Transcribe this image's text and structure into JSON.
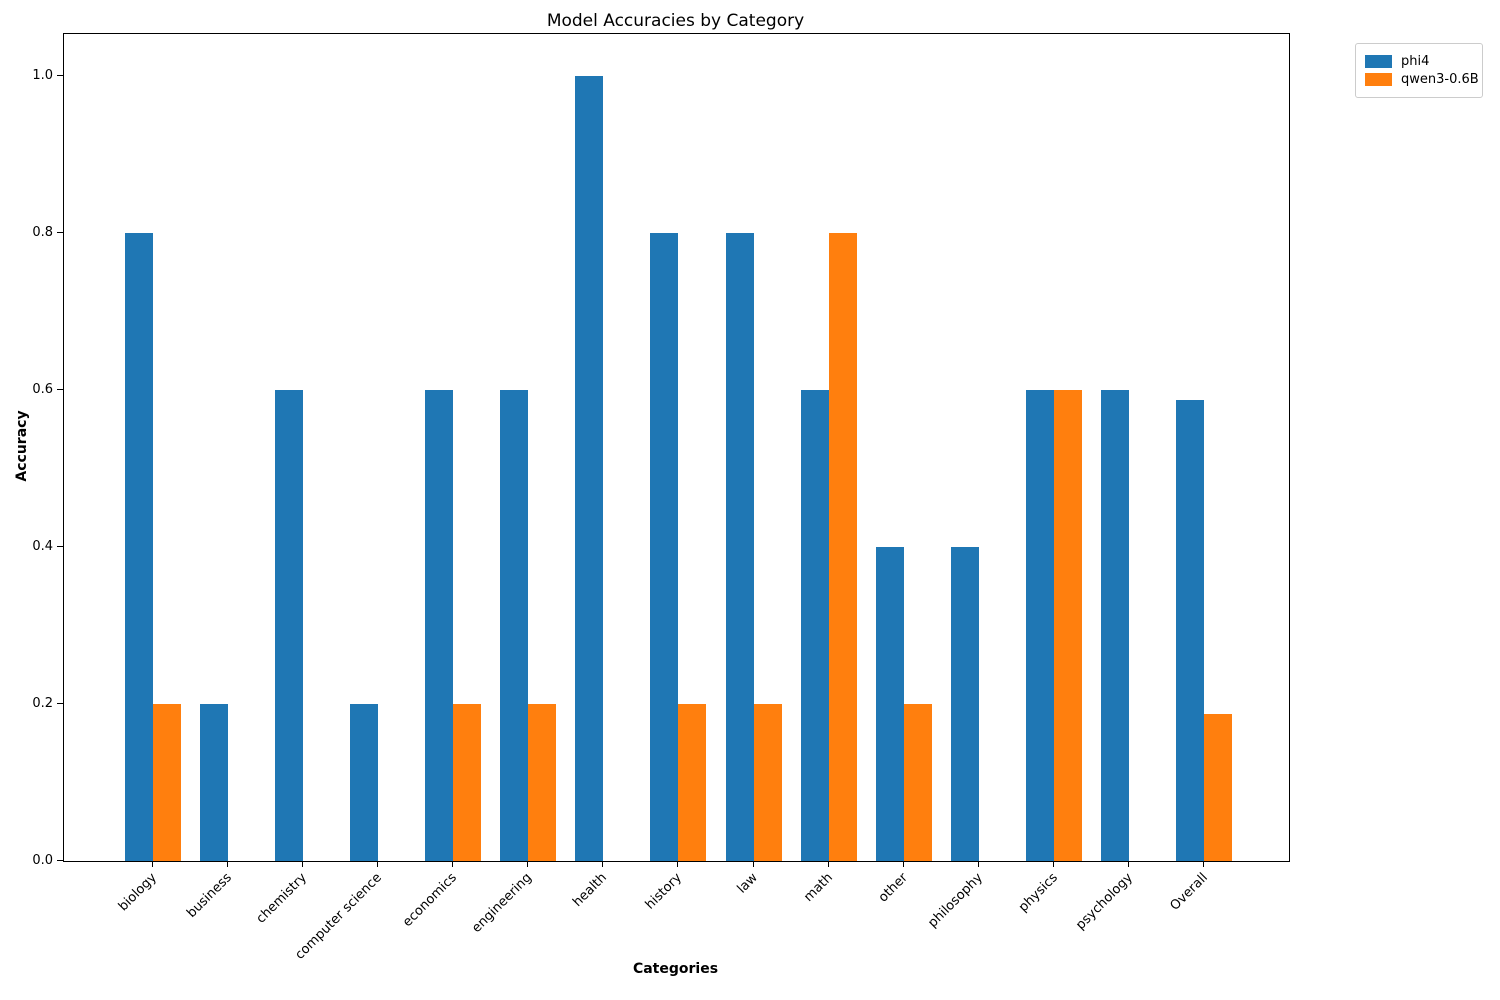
{
  "chart_data": {
    "type": "bar",
    "title": "Model Accuracies by Category",
    "xlabel": "Categories",
    "ylabel": "Accuracy",
    "categories": [
      "biology",
      "business",
      "chemistry",
      "computer science",
      "economics",
      "engineering",
      "health",
      "history",
      "law",
      "math",
      "other",
      "philosophy",
      "physics",
      "psychology",
      "Overall"
    ],
    "series": [
      {
        "name": "phi4",
        "color": "#1f77b4",
        "values": [
          0.8,
          0.2,
          0.6,
          0.2,
          0.6,
          0.6,
          1.0,
          0.8,
          0.8,
          0.6,
          0.4,
          0.4,
          0.6,
          0.6,
          0.587
        ]
      },
      {
        "name": "qwen3-0.6B",
        "color": "#ff7f0e",
        "values": [
          0.2,
          0.0,
          0.0,
          0.0,
          0.2,
          0.2,
          0.0,
          0.2,
          0.2,
          0.8,
          0.2,
          0.0,
          0.6,
          0.0,
          0.187
        ]
      }
    ],
    "yticks": [
      "0.0",
      "0.2",
      "0.4",
      "0.6",
      "0.8",
      "1.0"
    ],
    "ylim": [
      0,
      1.053
    ],
    "grid": false,
    "legend_position": "top-right-outside",
    "background_color": "#ffffff",
    "axis_color": "#000000"
  }
}
